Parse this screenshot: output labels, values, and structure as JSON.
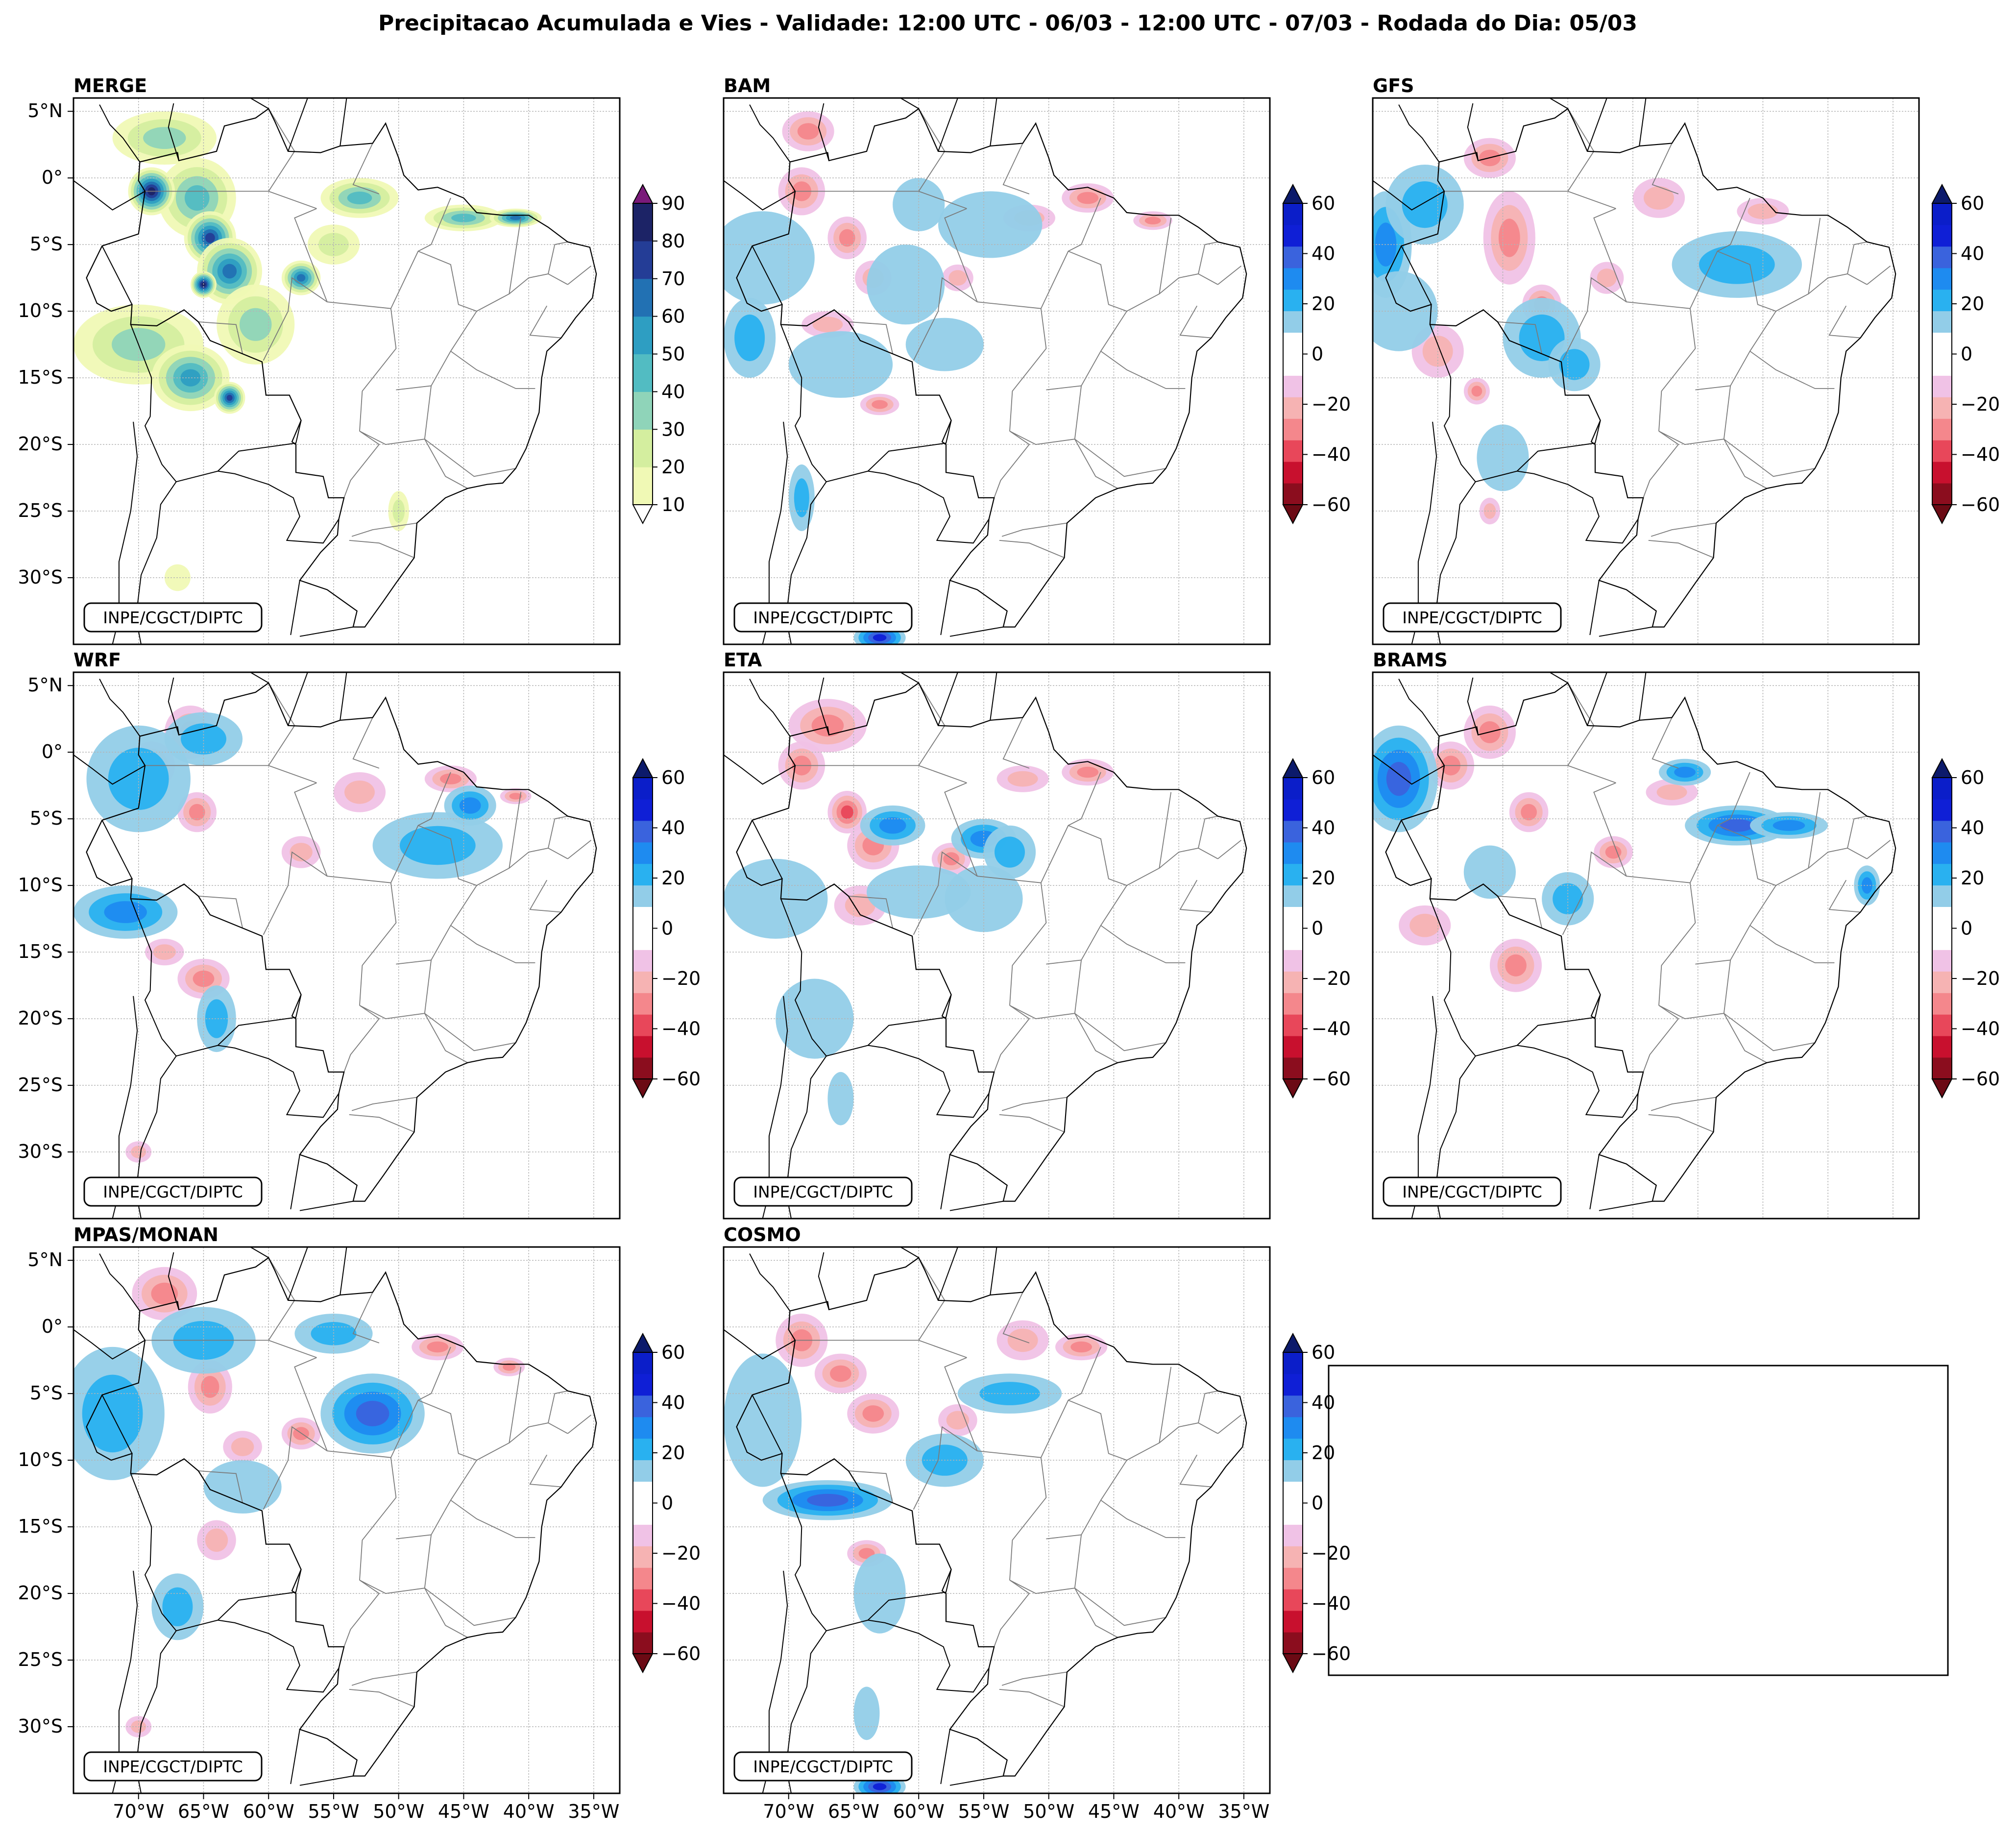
{
  "figure": {
    "title": "Precipitacao Acumulada e Vies - Validade: 12:00 UTC - 06/03 - 12:00 UTC - 07/03 - Rodada do Dia: 05/03"
  },
  "credit": "INPE/CGCT/DIPTC",
  "lat_labels": [
    "5°N",
    "0°",
    "5°S",
    "10°S",
    "15°S",
    "20°S",
    "25°S",
    "30°S"
  ],
  "lon_labels": [
    "70°W",
    "65°W",
    "60°W",
    "55°W",
    "50°W",
    "45°W",
    "40°W",
    "35°W"
  ],
  "panels": [
    {
      "id": "merge",
      "title": "MERGE",
      "kind": "precip"
    },
    {
      "id": "bam",
      "title": "BAM",
      "kind": "bias"
    },
    {
      "id": "gfs",
      "title": "GFS",
      "kind": "bias"
    },
    {
      "id": "wrf",
      "title": "WRF",
      "kind": "bias"
    },
    {
      "id": "eta",
      "title": "ETA",
      "kind": "bias"
    },
    {
      "id": "brams",
      "title": "BRAMS",
      "kind": "bias"
    },
    {
      "id": "mpas",
      "title": "MPAS/MONAN",
      "kind": "bias"
    },
    {
      "id": "cosmo",
      "title": "COSMO",
      "kind": "bias"
    }
  ],
  "colorbars": {
    "precip": {
      "ticks": [
        "10",
        "20",
        "30",
        "40",
        "50",
        "60",
        "70",
        "80",
        "90"
      ],
      "colors": [
        "#f0f9b5",
        "#d4ee9f",
        "#8fd4b9",
        "#52bcc2",
        "#2e9ec2",
        "#2271b3",
        "#243d96",
        "#1c2366"
      ],
      "extend_low": "#ffffff",
      "extend_high": "#7a1a7a"
    },
    "bias": {
      "ticks": [
        "−60",
        "−40",
        "−20",
        "0",
        "20",
        "40",
        "60"
      ],
      "colors": [
        "#8b0d1e",
        "#c8102e",
        "#e8475a",
        "#f4878c",
        "#f6b3b3",
        "#f0c2e6",
        "#ffffff",
        "#ffffff",
        "#92cde8",
        "#29b1f0",
        "#1e8bf0",
        "#3a63dd",
        "#0f1fd6",
        "#0b1ec9"
      ],
      "extend_low": "#6b0a14",
      "extend_high": "#0c1a6b"
    }
  },
  "colors": {
    "border": "#000000",
    "states": "#7a7a7a",
    "grid": "#b4b4b4"
  }
}
